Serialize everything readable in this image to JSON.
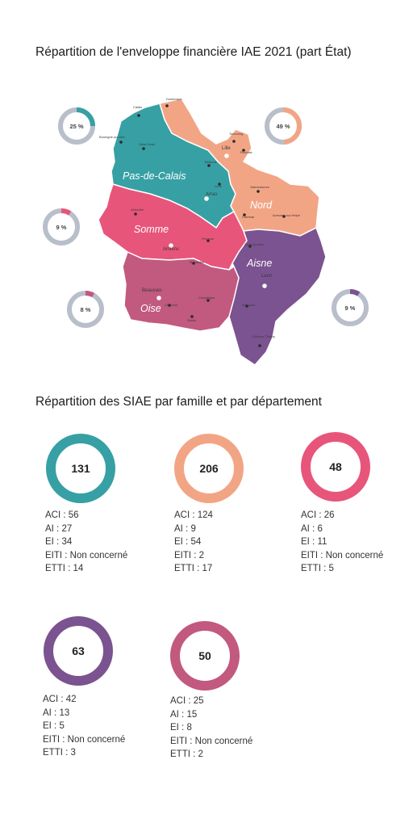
{
  "title_map": "Répartition de l'enveloppe financière IAE 2021 (part État)",
  "title_families": "Répartition des SIAE par famille et par département",
  "colors": {
    "pas_de_calais": "#37a0a4",
    "nord": "#f2a585",
    "somme": "#e8557a",
    "aisne": "#7b5390",
    "oise": "#c2597f",
    "ring_bg": "#b9bfca"
  },
  "regions": [
    {
      "name": "Pas-de-Calais",
      "key": "pas_de_calais"
    },
    {
      "name": "Nord",
      "key": "nord"
    },
    {
      "name": "Somme",
      "key": "somme"
    },
    {
      "name": "Aisne",
      "key": "aisne"
    },
    {
      "name": "Oise",
      "key": "oise"
    }
  ],
  "cities": [
    "Calais",
    "Dunkerque",
    "Boulogne-sur-Mer",
    "Saint-Omer",
    "Lille",
    "Tourcoing",
    "Roubaix",
    "Béthune",
    "Lens",
    "Arras",
    "Valenciennes",
    "Cambrai",
    "Avesnes-sur-Helpe",
    "Abbeville",
    "Amiens",
    "Péronne",
    "Montdidier",
    "Saint-Quentin",
    "Laon",
    "Beauvais",
    "Clermont",
    "Compiègne",
    "Senlis",
    "Soissons",
    "Château-Thierry"
  ],
  "chart_data": [
    {
      "type": "pie",
      "title": "Répartition de l'enveloppe financière IAE 2021 (part État)",
      "series": [
        {
          "name": "Pas-de-Calais",
          "value": 25,
          "label": "25 %"
        },
        {
          "name": "Nord",
          "value": 49,
          "label": "49 %"
        },
        {
          "name": "Somme",
          "value": 9,
          "label": "9 %"
        },
        {
          "name": "Oise",
          "value": 8,
          "label": "8 %"
        },
        {
          "name": "Aisne",
          "value": 9,
          "label": "9 %"
        }
      ],
      "unit": "%"
    },
    {
      "type": "table",
      "title": "Répartition des SIAE par famille et par département",
      "departments": [
        {
          "key": "pas_de_calais",
          "total": "131",
          "lines": [
            "ACI : 56",
            "AI : 27",
            "EI : 34",
            "EITI : Non concerné",
            "ETTI : 14"
          ]
        },
        {
          "key": "nord",
          "total": "206",
          "lines": [
            "ACI : 124",
            "AI : 9",
            "EI : 54",
            "EITI : 2",
            "ETTI : 17"
          ]
        },
        {
          "key": "somme",
          "total": "48",
          "lines": [
            "ACI : 26",
            "AI : 6",
            "EI : 11",
            "EITI : Non concerné",
            "ETTI : 5"
          ]
        },
        {
          "key": "aisne",
          "total": "63",
          "lines": [
            "ACI : 42",
            "AI : 13",
            "EI : 5",
            "EITI : Non concerné",
            "ETTI : 3"
          ]
        },
        {
          "key": "oise",
          "total": "50",
          "lines": [
            "ACI : 25",
            "AI : 15",
            "EI : 8",
            "EITI : Non concerné",
            "ETTI : 2"
          ]
        }
      ]
    }
  ]
}
